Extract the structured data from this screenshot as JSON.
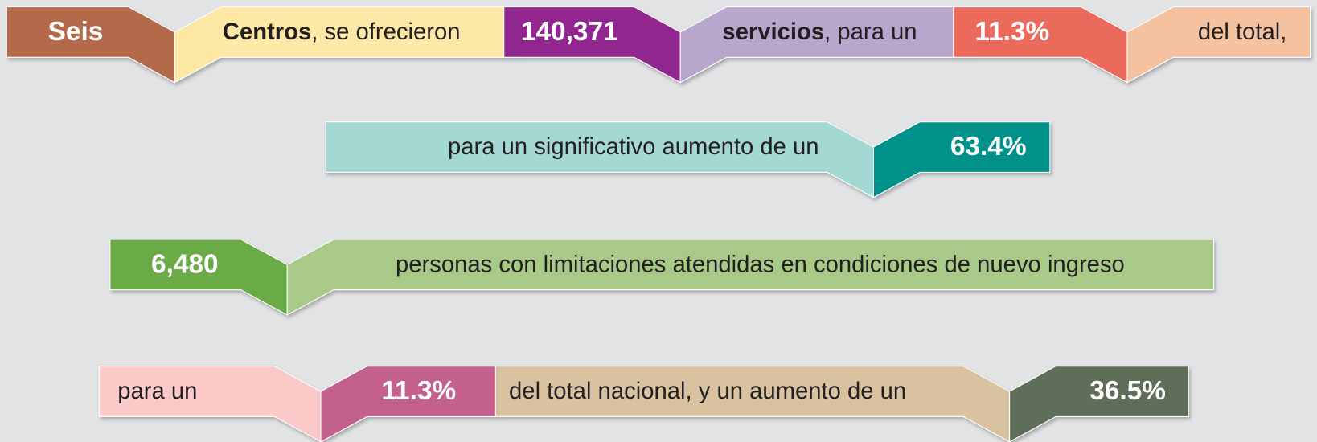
{
  "rows": [
    {
      "segments": [
        {
          "text": "Seis"
        },
        {
          "bold": "Centros",
          "text": ", se ofrecieron"
        },
        {
          "text": "140,371"
        },
        {
          "bold": "servicios",
          "text": ", para un"
        },
        {
          "text": "11.3%"
        },
        {
          "text": "del total,"
        }
      ]
    },
    {
      "segments": [
        {
          "text": "para un significativo aumento de un"
        },
        {
          "text": "63.4%"
        }
      ]
    },
    {
      "segments": [
        {
          "text": "6,480"
        },
        {
          "text": "personas con limitaciones atendidas en condiciones de nuevo ingreso"
        }
      ]
    },
    {
      "segments": [
        {
          "text": "para un"
        },
        {
          "text": "11.3%"
        },
        {
          "text": "del total nacional, y un aumento de un"
        },
        {
          "text": "36.5%"
        }
      ]
    }
  ]
}
